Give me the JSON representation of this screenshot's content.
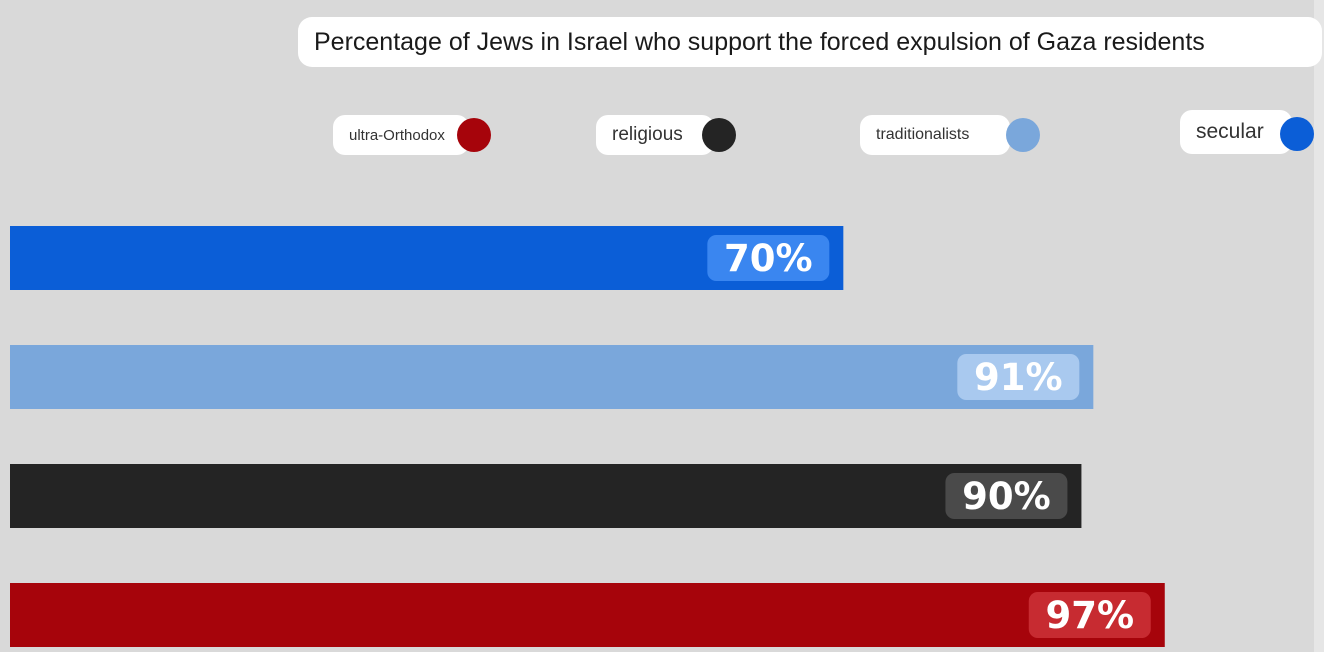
{
  "chart_data": {
    "type": "bar",
    "orientation": "horizontal",
    "title": "Percentage of Jews in Israel who support the forced expulsion of Gaza residents",
    "xlim": [
      0,
      105
    ],
    "grid": false,
    "legend_position": "top",
    "series": [
      {
        "name": "secular",
        "value": 70,
        "label": "70%",
        "color": "#0b5ed7",
        "label_bg": "#3a86f0"
      },
      {
        "name": "traditionalists",
        "value": 91,
        "label": "91%",
        "color": "#7aa7db",
        "label_bg": "#a9c9ef"
      },
      {
        "name": "religious",
        "value": 90,
        "label": "90%",
        "color": "#242424",
        "label_bg": "#4a4a4a"
      },
      {
        "name": "ultra-Orthodox",
        "value": 97,
        "label": "97%",
        "color": "#a6040b",
        "label_bg": "#c72b31"
      }
    ]
  },
  "legend": [
    {
      "label": "ultra-Orthodox",
      "color": "#a6040b"
    },
    {
      "label": "religious",
      "color": "#242424"
    },
    {
      "label": "traditionalists",
      "color": "#7aa7db"
    },
    {
      "label": "secular",
      "color": "#0b5ed7"
    }
  ]
}
